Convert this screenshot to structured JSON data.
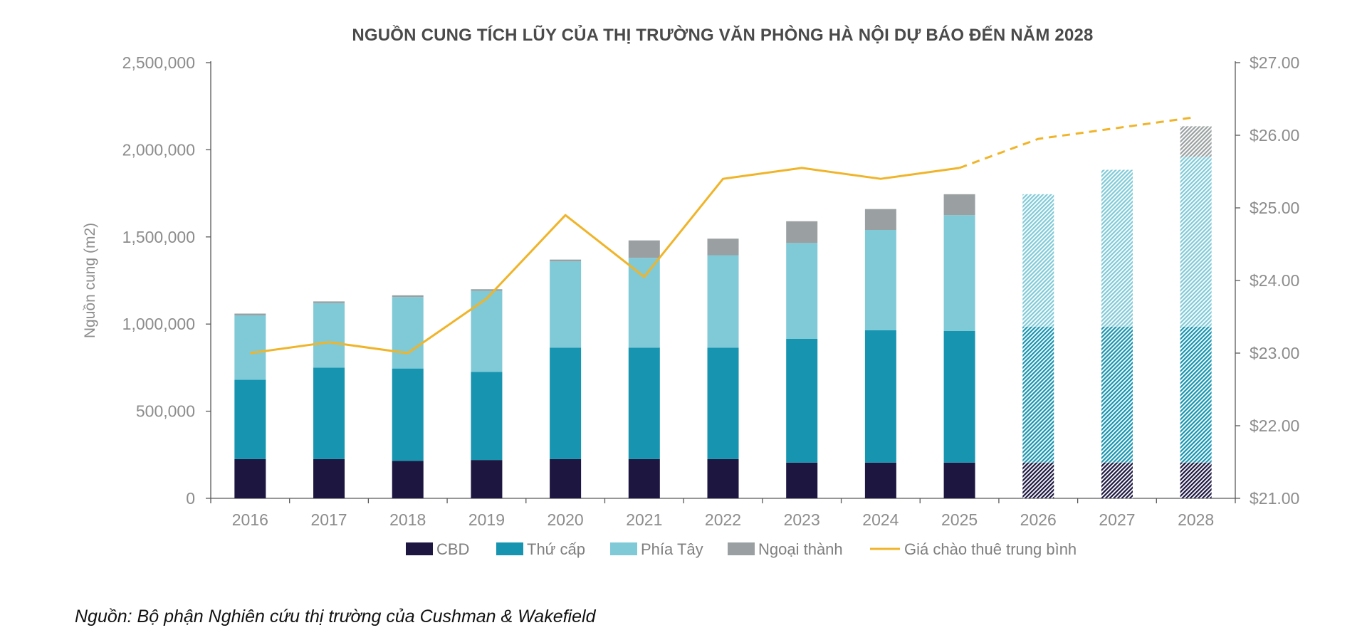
{
  "chart_data": {
    "type": "bar",
    "stacked": true,
    "title": "NGUỒN CUNG TÍCH LŨY CỦA THỊ TRƯỜNG VĂN PHÒNG HÀ NỘI DỰ BÁO ĐẾN NĂM 2028",
    "ylabel": "Nguồn cung (m2)",
    "y2label": "",
    "categories": [
      "2016",
      "2017",
      "2018",
      "2019",
      "2020",
      "2021",
      "2022",
      "2023",
      "2024",
      "2025",
      "2026",
      "2027",
      "2028"
    ],
    "forecast_categories": [
      "2026",
      "2027",
      "2028"
    ],
    "series": [
      {
        "name": "CBD",
        "color": "#1c1640",
        "values": [
          225000,
          225000,
          215000,
          220000,
          225000,
          225000,
          225000,
          205000,
          205000,
          205000,
          205000,
          205000,
          205000
        ]
      },
      {
        "name": "Thứ cấp",
        "color": "#1694b0",
        "values": [
          455000,
          525000,
          530000,
          505000,
          640000,
          640000,
          640000,
          710000,
          760000,
          755000,
          780000,
          780000,
          780000
        ]
      },
      {
        "name": "Phía Tây",
        "color": "#80cad8",
        "values": [
          370000,
          370000,
          410000,
          465000,
          495000,
          515000,
          530000,
          550000,
          575000,
          665000,
          760000,
          900000,
          975000
        ]
      },
      {
        "name": "Ngoại thành",
        "color": "#9aa0a1",
        "values": [
          10000,
          10000,
          10000,
          10000,
          10000,
          100000,
          95000,
          125000,
          120000,
          120000,
          0,
          0,
          175000
        ]
      }
    ],
    "line": {
      "name": "Giá chào thuê trung bình",
      "color": "#f0b429",
      "axis": "right",
      "values": [
        23.0,
        23.15,
        23.0,
        23.75,
        24.9,
        24.05,
        25.4,
        25.55,
        25.4,
        25.55,
        25.95,
        26.1,
        26.25
      ],
      "forecast_from_index": 9
    },
    "ylim": [
      0,
      2500000
    ],
    "yticks": [
      "0",
      "500,000",
      "1,000,000",
      "1,500,000",
      "2,000,000",
      "2,500,000"
    ],
    "y2lim": [
      21,
      27
    ],
    "y2ticks": [
      "$21.00",
      "$22.00",
      "$23.00",
      "$24.00",
      "$25.00",
      "$26.00",
      "$27.00"
    ],
    "legend": {
      "position": "bottom",
      "entries": [
        "CBD",
        "Thứ cấp",
        "Phía Tây",
        "Ngoại thành",
        "Giá chào thuê trung bình"
      ]
    }
  },
  "source_note": "Nguồn: Bộ phận Nghiên cứu thị trường của Cushman & Wakefield"
}
